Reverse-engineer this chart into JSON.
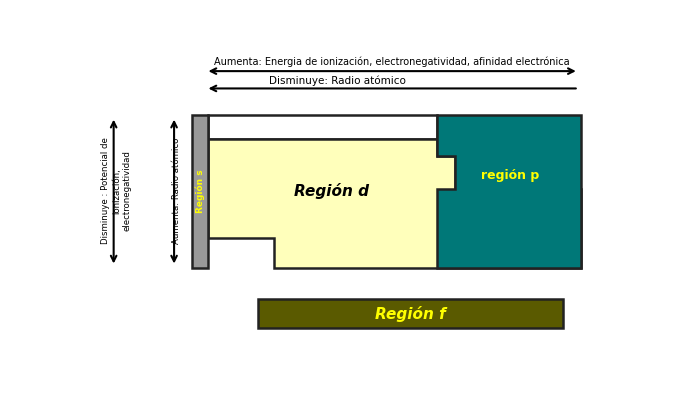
{
  "bg_color": "#ffffff",
  "title_top": "Aumenta: Energia de ionización, electronegatividad, afinidad electrónica",
  "arrow_decrease": "Disminuye: Radio atómico",
  "left_label_line1": "Disminuye : Potencial de",
  "left_label_line2": "ionización,",
  "left_label_line3": "electronegatividad",
  "left_label_arrow2": "Aumenta: Radio atómico",
  "region_s_color": "#999999",
  "region_d_color": "#ffffbb",
  "region_p_color": "#007878",
  "region_f_color": "#5a5a00",
  "region_s_label": "Región s",
  "region_d_label": "Región d",
  "region_p_label": "región p",
  "region_f_label": "Región f",
  "label_yellow": "#ffff00",
  "label_black": "#000000",
  "outline_color": "#222222",
  "lw": 1.8
}
